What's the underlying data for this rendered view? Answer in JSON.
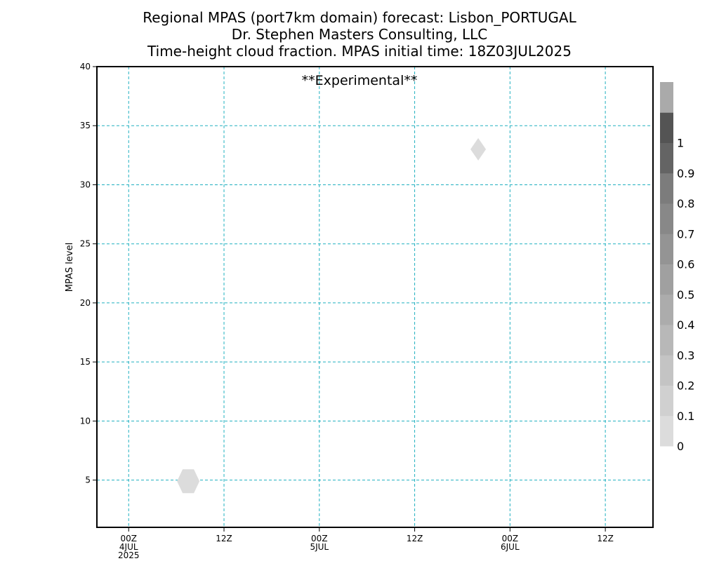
{
  "chart_data": {
    "type": "heatmap",
    "title_lines": [
      "Regional MPAS (port7km domain) forecast: Lisbon_PORTUGAL",
      "Dr. Stephen Masters Consulting, LLC",
      "Time-height cloud fraction.   MPAS initial time: 18Z03JUL2025"
    ],
    "annotation": "**Experimental**",
    "annotation_color": "#e03030",
    "ylabel": "MPAS level",
    "ylim": [
      1,
      40
    ],
    "yticks": [
      5,
      10,
      15,
      20,
      25,
      30,
      35,
      40
    ],
    "xlim_hours": [
      -4,
      66
    ],
    "xticks": [
      {
        "hour": 0,
        "lines": [
          "00Z",
          "4JUL",
          "2025"
        ]
      },
      {
        "hour": 12,
        "lines": [
          "12Z"
        ]
      },
      {
        "hour": 24,
        "lines": [
          "00Z",
          "5JUL"
        ]
      },
      {
        "hour": 36,
        "lines": [
          "12Z"
        ]
      },
      {
        "hour": 48,
        "lines": [
          "00Z",
          "6JUL"
        ]
      },
      {
        "hour": 60,
        "lines": [
          "12Z"
        ]
      }
    ],
    "grid": true,
    "grid_color": "#20b0c0",
    "colorbar": {
      "levels": [
        "0",
        "0.1",
        "0.2",
        "0.3",
        "0.4",
        "0.5",
        "0.6",
        "0.7",
        "0.8",
        "0.9",
        "1"
      ],
      "colors": [
        "#dcdcdc",
        "#d0d0d0",
        "#c4c4c4",
        "#b8b8b8",
        "#acacac",
        "#a0a0a0",
        "#949494",
        "#888888",
        "#7c7c7c",
        "#646464",
        "#545454",
        "#aaaaaa"
      ]
    },
    "cloud_patches": [
      {
        "hour": 7.5,
        "level": 4.9,
        "fraction": 0.05
      },
      {
        "hour": 44,
        "level": 33,
        "fraction": 0.05
      }
    ]
  }
}
